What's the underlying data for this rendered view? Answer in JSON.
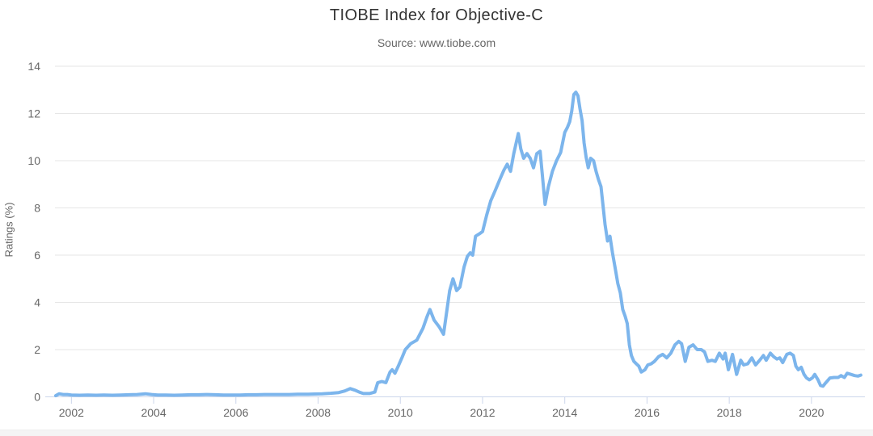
{
  "chart_data": {
    "type": "line",
    "title": "TIOBE Index for Objective-C",
    "subtitle": "Source: www.tiobe.com",
    "xlabel": "",
    "ylabel": "Ratings (%)",
    "xlim": [
      2001.6,
      2021.3
    ],
    "ylim": [
      0,
      14
    ],
    "x_ticks": [
      2002,
      2004,
      2006,
      2008,
      2010,
      2012,
      2014,
      2016,
      2018,
      2020
    ],
    "y_ticks": [
      0,
      2,
      4,
      6,
      8,
      10,
      12,
      14
    ],
    "grid": "horizontal-only",
    "legend": "none",
    "colors": {
      "line": "#7cb5ec",
      "grid": "#e6e6e6",
      "axis": "#ccd6eb",
      "tick": "#ccd6eb",
      "label": "#666666",
      "title": "#333333",
      "subtitle": "#666666"
    },
    "series": [
      {
        "name": "Objective-C",
        "points": [
          [
            2001.62,
            0.05
          ],
          [
            2001.7,
            0.13
          ],
          [
            2001.8,
            0.1
          ],
          [
            2001.9,
            0.1
          ],
          [
            2002.0,
            0.08
          ],
          [
            2002.2,
            0.07
          ],
          [
            2002.4,
            0.08
          ],
          [
            2002.6,
            0.07
          ],
          [
            2002.8,
            0.08
          ],
          [
            2003.0,
            0.07
          ],
          [
            2003.2,
            0.08
          ],
          [
            2003.4,
            0.09
          ],
          [
            2003.6,
            0.1
          ],
          [
            2003.8,
            0.13
          ],
          [
            2003.95,
            0.1
          ],
          [
            2004.1,
            0.08
          ],
          [
            2004.3,
            0.08
          ],
          [
            2004.5,
            0.07
          ],
          [
            2004.7,
            0.08
          ],
          [
            2004.9,
            0.09
          ],
          [
            2005.1,
            0.09
          ],
          [
            2005.3,
            0.1
          ],
          [
            2005.5,
            0.09
          ],
          [
            2005.7,
            0.08
          ],
          [
            2005.9,
            0.08
          ],
          [
            2006.1,
            0.08
          ],
          [
            2006.3,
            0.09
          ],
          [
            2006.5,
            0.09
          ],
          [
            2006.7,
            0.1
          ],
          [
            2006.9,
            0.1
          ],
          [
            2007.1,
            0.1
          ],
          [
            2007.3,
            0.1
          ],
          [
            2007.5,
            0.11
          ],
          [
            2007.7,
            0.11
          ],
          [
            2007.9,
            0.12
          ],
          [
            2008.1,
            0.13
          ],
          [
            2008.3,
            0.15
          ],
          [
            2008.5,
            0.18
          ],
          [
            2008.65,
            0.25
          ],
          [
            2008.78,
            0.35
          ],
          [
            2008.9,
            0.28
          ],
          [
            2009.0,
            0.2
          ],
          [
            2009.1,
            0.14
          ],
          [
            2009.25,
            0.14
          ],
          [
            2009.38,
            0.2
          ],
          [
            2009.45,
            0.6
          ],
          [
            2009.55,
            0.65
          ],
          [
            2009.65,
            0.6
          ],
          [
            2009.75,
            1.05
          ],
          [
            2009.8,
            1.15
          ],
          [
            2009.87,
            1.0
          ],
          [
            2009.95,
            1.3
          ],
          [
            2010.05,
            1.7
          ],
          [
            2010.12,
            2.0
          ],
          [
            2010.25,
            2.25
          ],
          [
            2010.4,
            2.4
          ],
          [
            2010.55,
            2.9
          ],
          [
            2010.65,
            3.4
          ],
          [
            2010.72,
            3.7
          ],
          [
            2010.82,
            3.25
          ],
          [
            2010.95,
            2.95
          ],
          [
            2011.05,
            2.65
          ],
          [
            2011.2,
            4.5
          ],
          [
            2011.28,
            5.0
          ],
          [
            2011.37,
            4.5
          ],
          [
            2011.45,
            4.65
          ],
          [
            2011.55,
            5.5
          ],
          [
            2011.63,
            5.95
          ],
          [
            2011.7,
            6.1
          ],
          [
            2011.76,
            6.0
          ],
          [
            2011.83,
            6.8
          ],
          [
            2011.92,
            6.9
          ],
          [
            2012.0,
            7.0
          ],
          [
            2012.1,
            7.7
          ],
          [
            2012.2,
            8.3
          ],
          [
            2012.3,
            8.7
          ],
          [
            2012.42,
            9.2
          ],
          [
            2012.52,
            9.6
          ],
          [
            2012.6,
            9.85
          ],
          [
            2012.68,
            9.55
          ],
          [
            2012.76,
            10.3
          ],
          [
            2012.87,
            11.15
          ],
          [
            2012.93,
            10.5
          ],
          [
            2013.0,
            10.1
          ],
          [
            2013.08,
            10.3
          ],
          [
            2013.16,
            10.1
          ],
          [
            2013.24,
            9.7
          ],
          [
            2013.32,
            10.3
          ],
          [
            2013.4,
            10.4
          ],
          [
            2013.46,
            9.3
          ],
          [
            2013.52,
            8.15
          ],
          [
            2013.6,
            8.9
          ],
          [
            2013.7,
            9.55
          ],
          [
            2013.8,
            10.0
          ],
          [
            2013.9,
            10.35
          ],
          [
            2014.0,
            11.2
          ],
          [
            2014.06,
            11.4
          ],
          [
            2014.12,
            11.65
          ],
          [
            2014.17,
            12.1
          ],
          [
            2014.22,
            12.8
          ],
          [
            2014.27,
            12.9
          ],
          [
            2014.32,
            12.75
          ],
          [
            2014.37,
            12.2
          ],
          [
            2014.42,
            11.7
          ],
          [
            2014.47,
            10.75
          ],
          [
            2014.52,
            10.15
          ],
          [
            2014.57,
            9.7
          ],
          [
            2014.63,
            10.1
          ],
          [
            2014.7,
            10.0
          ],
          [
            2014.76,
            9.55
          ],
          [
            2014.82,
            9.2
          ],
          [
            2014.88,
            8.9
          ],
          [
            2014.93,
            8.1
          ],
          [
            2014.98,
            7.3
          ],
          [
            2015.04,
            6.6
          ],
          [
            2015.1,
            6.8
          ],
          [
            2015.16,
            6.1
          ],
          [
            2015.22,
            5.5
          ],
          [
            2015.29,
            4.8
          ],
          [
            2015.35,
            4.4
          ],
          [
            2015.41,
            3.7
          ],
          [
            2015.47,
            3.4
          ],
          [
            2015.52,
            3.1
          ],
          [
            2015.57,
            2.2
          ],
          [
            2015.62,
            1.75
          ],
          [
            2015.68,
            1.5
          ],
          [
            2015.74,
            1.4
          ],
          [
            2015.8,
            1.3
          ],
          [
            2015.86,
            1.05
          ],
          [
            2015.95,
            1.15
          ],
          [
            2016.02,
            1.35
          ],
          [
            2016.1,
            1.4
          ],
          [
            2016.18,
            1.5
          ],
          [
            2016.28,
            1.7
          ],
          [
            2016.38,
            1.8
          ],
          [
            2016.48,
            1.65
          ],
          [
            2016.58,
            1.85
          ],
          [
            2016.68,
            2.2
          ],
          [
            2016.77,
            2.35
          ],
          [
            2016.84,
            2.25
          ],
          [
            2016.93,
            1.5
          ],
          [
            2017.02,
            2.1
          ],
          [
            2017.12,
            2.2
          ],
          [
            2017.22,
            2.0
          ],
          [
            2017.32,
            2.0
          ],
          [
            2017.4,
            1.9
          ],
          [
            2017.48,
            1.5
          ],
          [
            2017.58,
            1.55
          ],
          [
            2017.66,
            1.5
          ],
          [
            2017.76,
            1.85
          ],
          [
            2017.85,
            1.6
          ],
          [
            2017.9,
            1.85
          ],
          [
            2017.98,
            1.15
          ],
          [
            2018.08,
            1.8
          ],
          [
            2018.18,
            0.95
          ],
          [
            2018.28,
            1.55
          ],
          [
            2018.35,
            1.35
          ],
          [
            2018.45,
            1.4
          ],
          [
            2018.55,
            1.65
          ],
          [
            2018.64,
            1.35
          ],
          [
            2018.74,
            1.55
          ],
          [
            2018.83,
            1.75
          ],
          [
            2018.9,
            1.55
          ],
          [
            2019.0,
            1.85
          ],
          [
            2019.08,
            1.7
          ],
          [
            2019.16,
            1.6
          ],
          [
            2019.23,
            1.65
          ],
          [
            2019.3,
            1.45
          ],
          [
            2019.4,
            1.8
          ],
          [
            2019.48,
            1.85
          ],
          [
            2019.56,
            1.75
          ],
          [
            2019.62,
            1.3
          ],
          [
            2019.68,
            1.15
          ],
          [
            2019.75,
            1.25
          ],
          [
            2019.82,
            0.95
          ],
          [
            2019.88,
            0.8
          ],
          [
            2019.95,
            0.72
          ],
          [
            2020.02,
            0.8
          ],
          [
            2020.08,
            0.95
          ],
          [
            2020.16,
            0.72
          ],
          [
            2020.22,
            0.48
          ],
          [
            2020.28,
            0.45
          ],
          [
            2020.35,
            0.6
          ],
          [
            2020.45,
            0.8
          ],
          [
            2020.55,
            0.82
          ],
          [
            2020.65,
            0.82
          ],
          [
            2020.72,
            0.9
          ],
          [
            2020.8,
            0.82
          ],
          [
            2020.87,
            1.0
          ],
          [
            2020.96,
            0.95
          ],
          [
            2021.05,
            0.9
          ],
          [
            2021.13,
            0.88
          ],
          [
            2021.2,
            0.92
          ]
        ]
      }
    ]
  }
}
